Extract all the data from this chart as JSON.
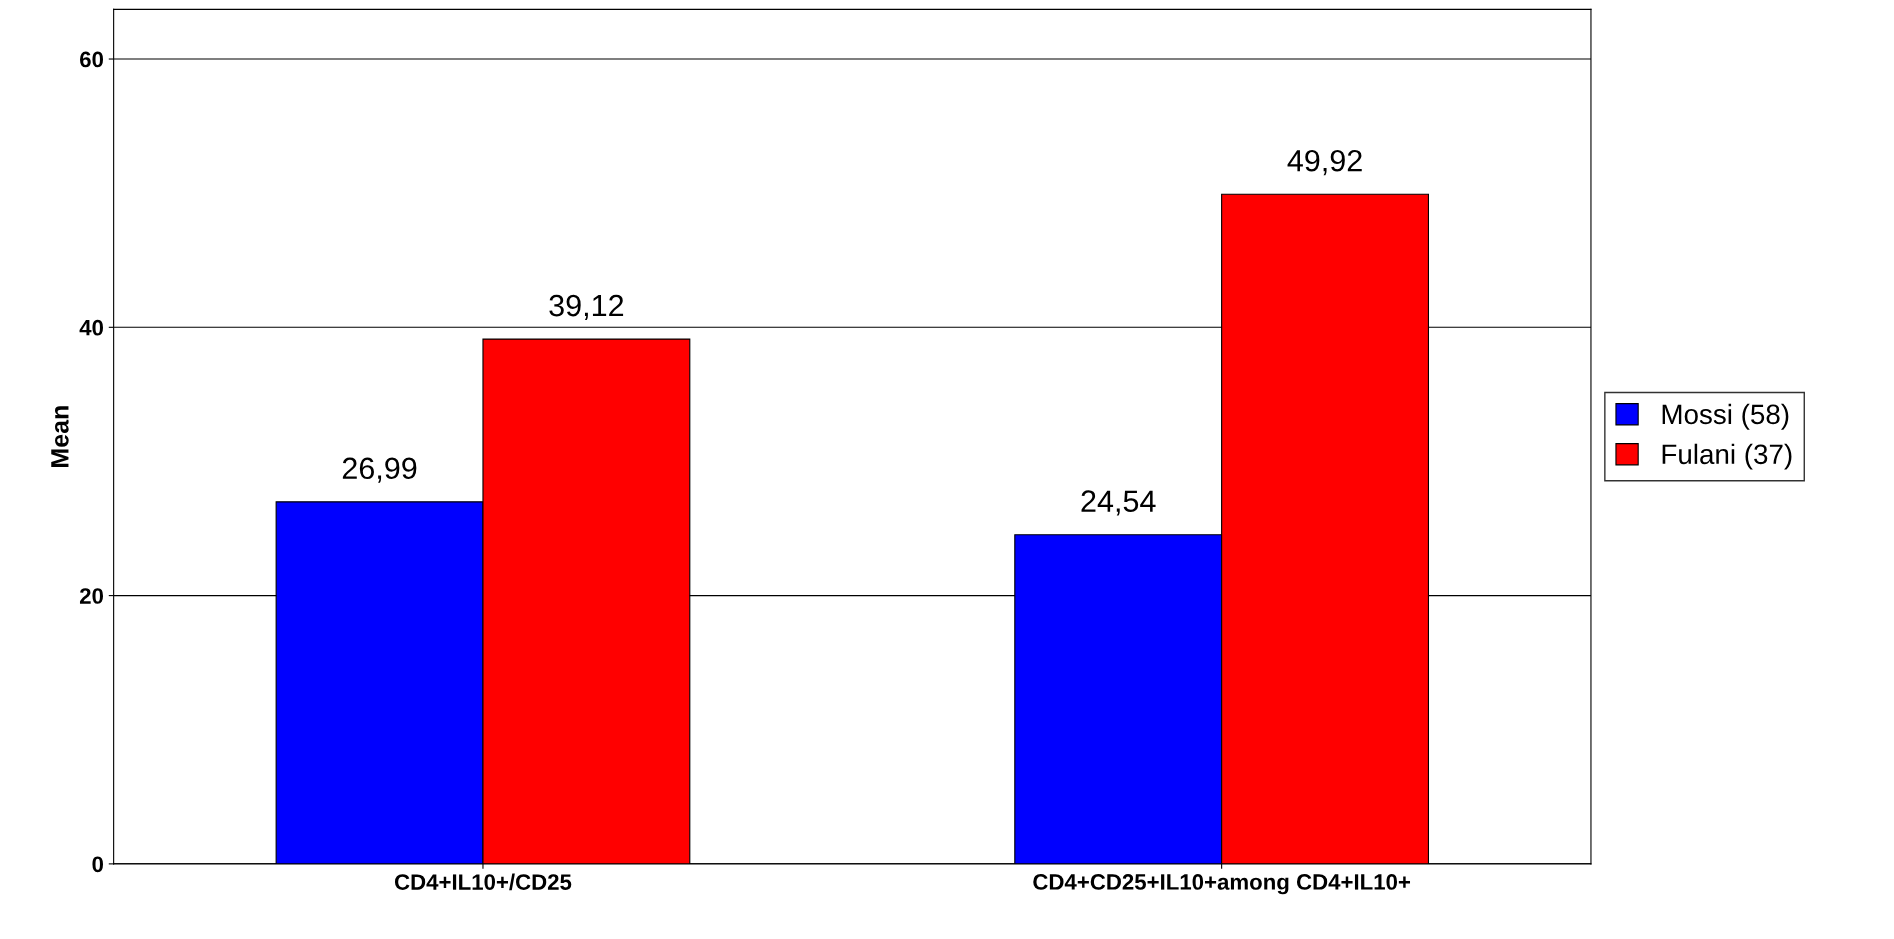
{
  "chart_data": {
    "type": "bar",
    "ylabel": "Mean",
    "categories": [
      "CD4+IL10+/CD25",
      "CD4+CD25+IL10+among CD4+IL10+"
    ],
    "series": [
      {
        "name": "Mossi (58)",
        "color": "#0000ff",
        "values": [
          26.99,
          24.54
        ],
        "value_labels": [
          "26,99",
          "24,54"
        ]
      },
      {
        "name": "Fulani (37)",
        "color": "#ff0000",
        "values": [
          39.12,
          49.92
        ],
        "value_labels": [
          "39,12",
          "49,92"
        ]
      }
    ],
    "ylim": [
      0,
      63.7
    ],
    "yticks": [
      0,
      20,
      40,
      60
    ],
    "grid": "y",
    "legend": "right"
  }
}
